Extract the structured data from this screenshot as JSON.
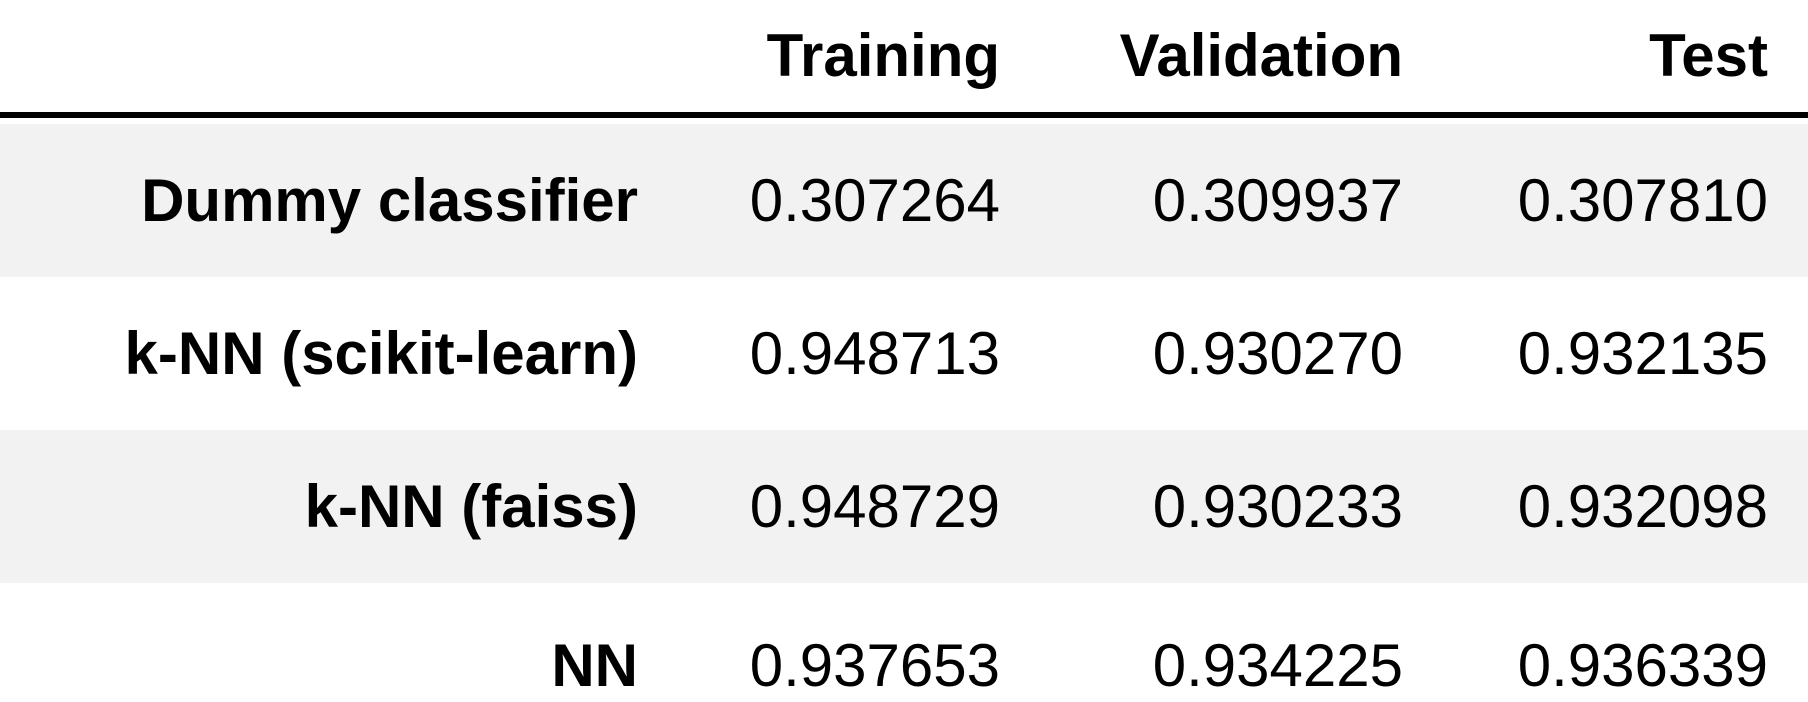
{
  "table": {
    "columns": [
      "",
      "Training",
      "Validation",
      "Test"
    ],
    "rows": [
      {
        "label": "Dummy classifier",
        "values": [
          "0.307264",
          "0.309937",
          "0.307810"
        ]
      },
      {
        "label": "k-NN (scikit-learn)",
        "values": [
          "0.948713",
          "0.930270",
          "0.932135"
        ]
      },
      {
        "label": "k-NN (faiss)",
        "values": [
          "0.948729",
          "0.930233",
          "0.932098"
        ]
      },
      {
        "label": "NN",
        "values": [
          "0.937653",
          "0.934225",
          "0.936339"
        ]
      }
    ]
  },
  "colors": {
    "shaded_row": "#f2f2f2",
    "plain_row": "#ffffff",
    "rule": "#000000",
    "text": "#000000"
  }
}
